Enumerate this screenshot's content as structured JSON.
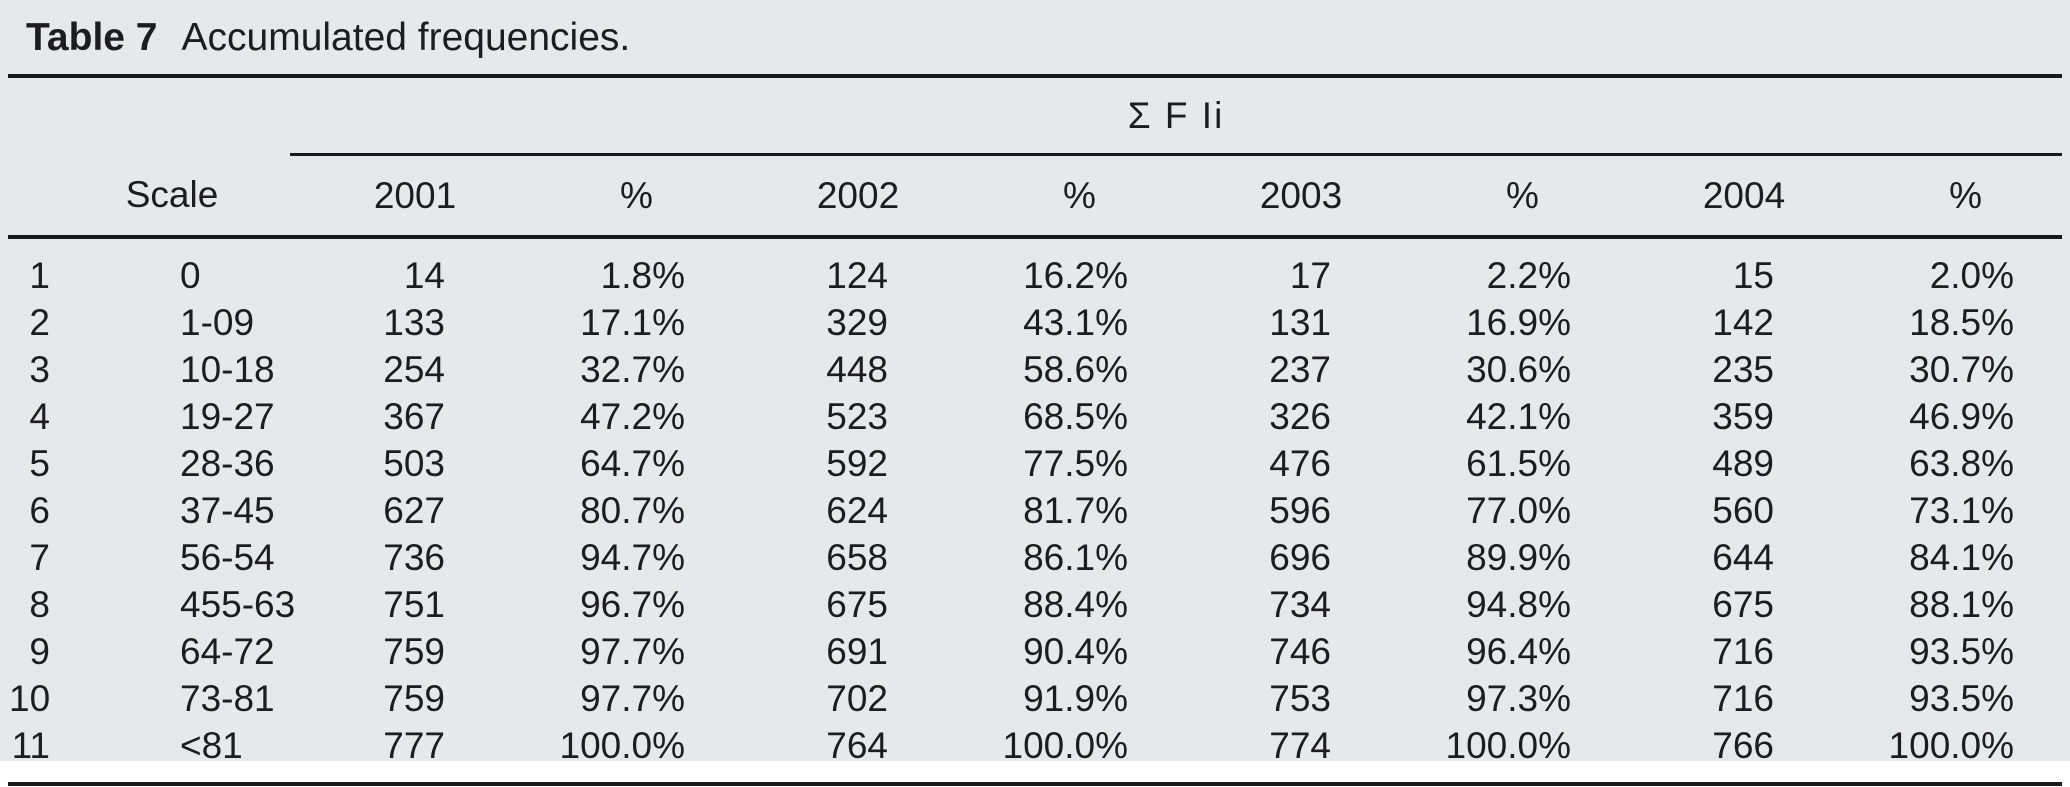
{
  "page": {
    "panel_background": "#e7e8e9",
    "text_color": "#1d1d1f",
    "rule_color": "#1a1a1a"
  },
  "title": {
    "label": "Table 7",
    "caption": "Accumulated frequencies."
  },
  "table": {
    "group_header": "Σ F Ii",
    "columns": [
      "",
      "Scale",
      "2001",
      "%",
      "2002",
      "%",
      "2003",
      "%",
      "2004",
      "%"
    ],
    "rows": [
      [
        "1",
        "0",
        "14",
        "1.8%",
        "124",
        "16.2%",
        "17",
        "2.2%",
        "15",
        "2.0%"
      ],
      [
        "2",
        "1-09",
        "133",
        "17.1%",
        "329",
        "43.1%",
        "131",
        "16.9%",
        "142",
        "18.5%"
      ],
      [
        "3",
        "10-18",
        "254",
        "32.7%",
        "448",
        "58.6%",
        "237",
        "30.6%",
        "235",
        "30.7%"
      ],
      [
        "4",
        "19-27",
        "367",
        "47.2%",
        "523",
        "68.5%",
        "326",
        "42.1%",
        "359",
        "46.9%"
      ],
      [
        "5",
        "28-36",
        "503",
        "64.7%",
        "592",
        "77.5%",
        "476",
        "61.5%",
        "489",
        "63.8%"
      ],
      [
        "6",
        "37-45",
        "627",
        "80.7%",
        "624",
        "81.7%",
        "596",
        "77.0%",
        "560",
        "73.1%"
      ],
      [
        "7",
        "56-54",
        "736",
        "94.7%",
        "658",
        "86.1%",
        "696",
        "89.9%",
        "644",
        "84.1%"
      ],
      [
        "8",
        "455-63",
        "751",
        "96.7%",
        "675",
        "88.4%",
        "734",
        "94.8%",
        "675",
        "88.1%"
      ],
      [
        "9",
        "64-72",
        "759",
        "97.7%",
        "691",
        "90.4%",
        "746",
        "96.4%",
        "716",
        "93.5%"
      ],
      [
        "10",
        "73-81",
        "759",
        "97.7%",
        "702",
        "91.9%",
        "753",
        "97.3%",
        "716",
        "93.5%"
      ],
      [
        "11",
        "<81",
        "777",
        "100.0%",
        "764",
        "100.0%",
        "774",
        "100.0%",
        "766",
        "100.0%"
      ]
    ]
  }
}
